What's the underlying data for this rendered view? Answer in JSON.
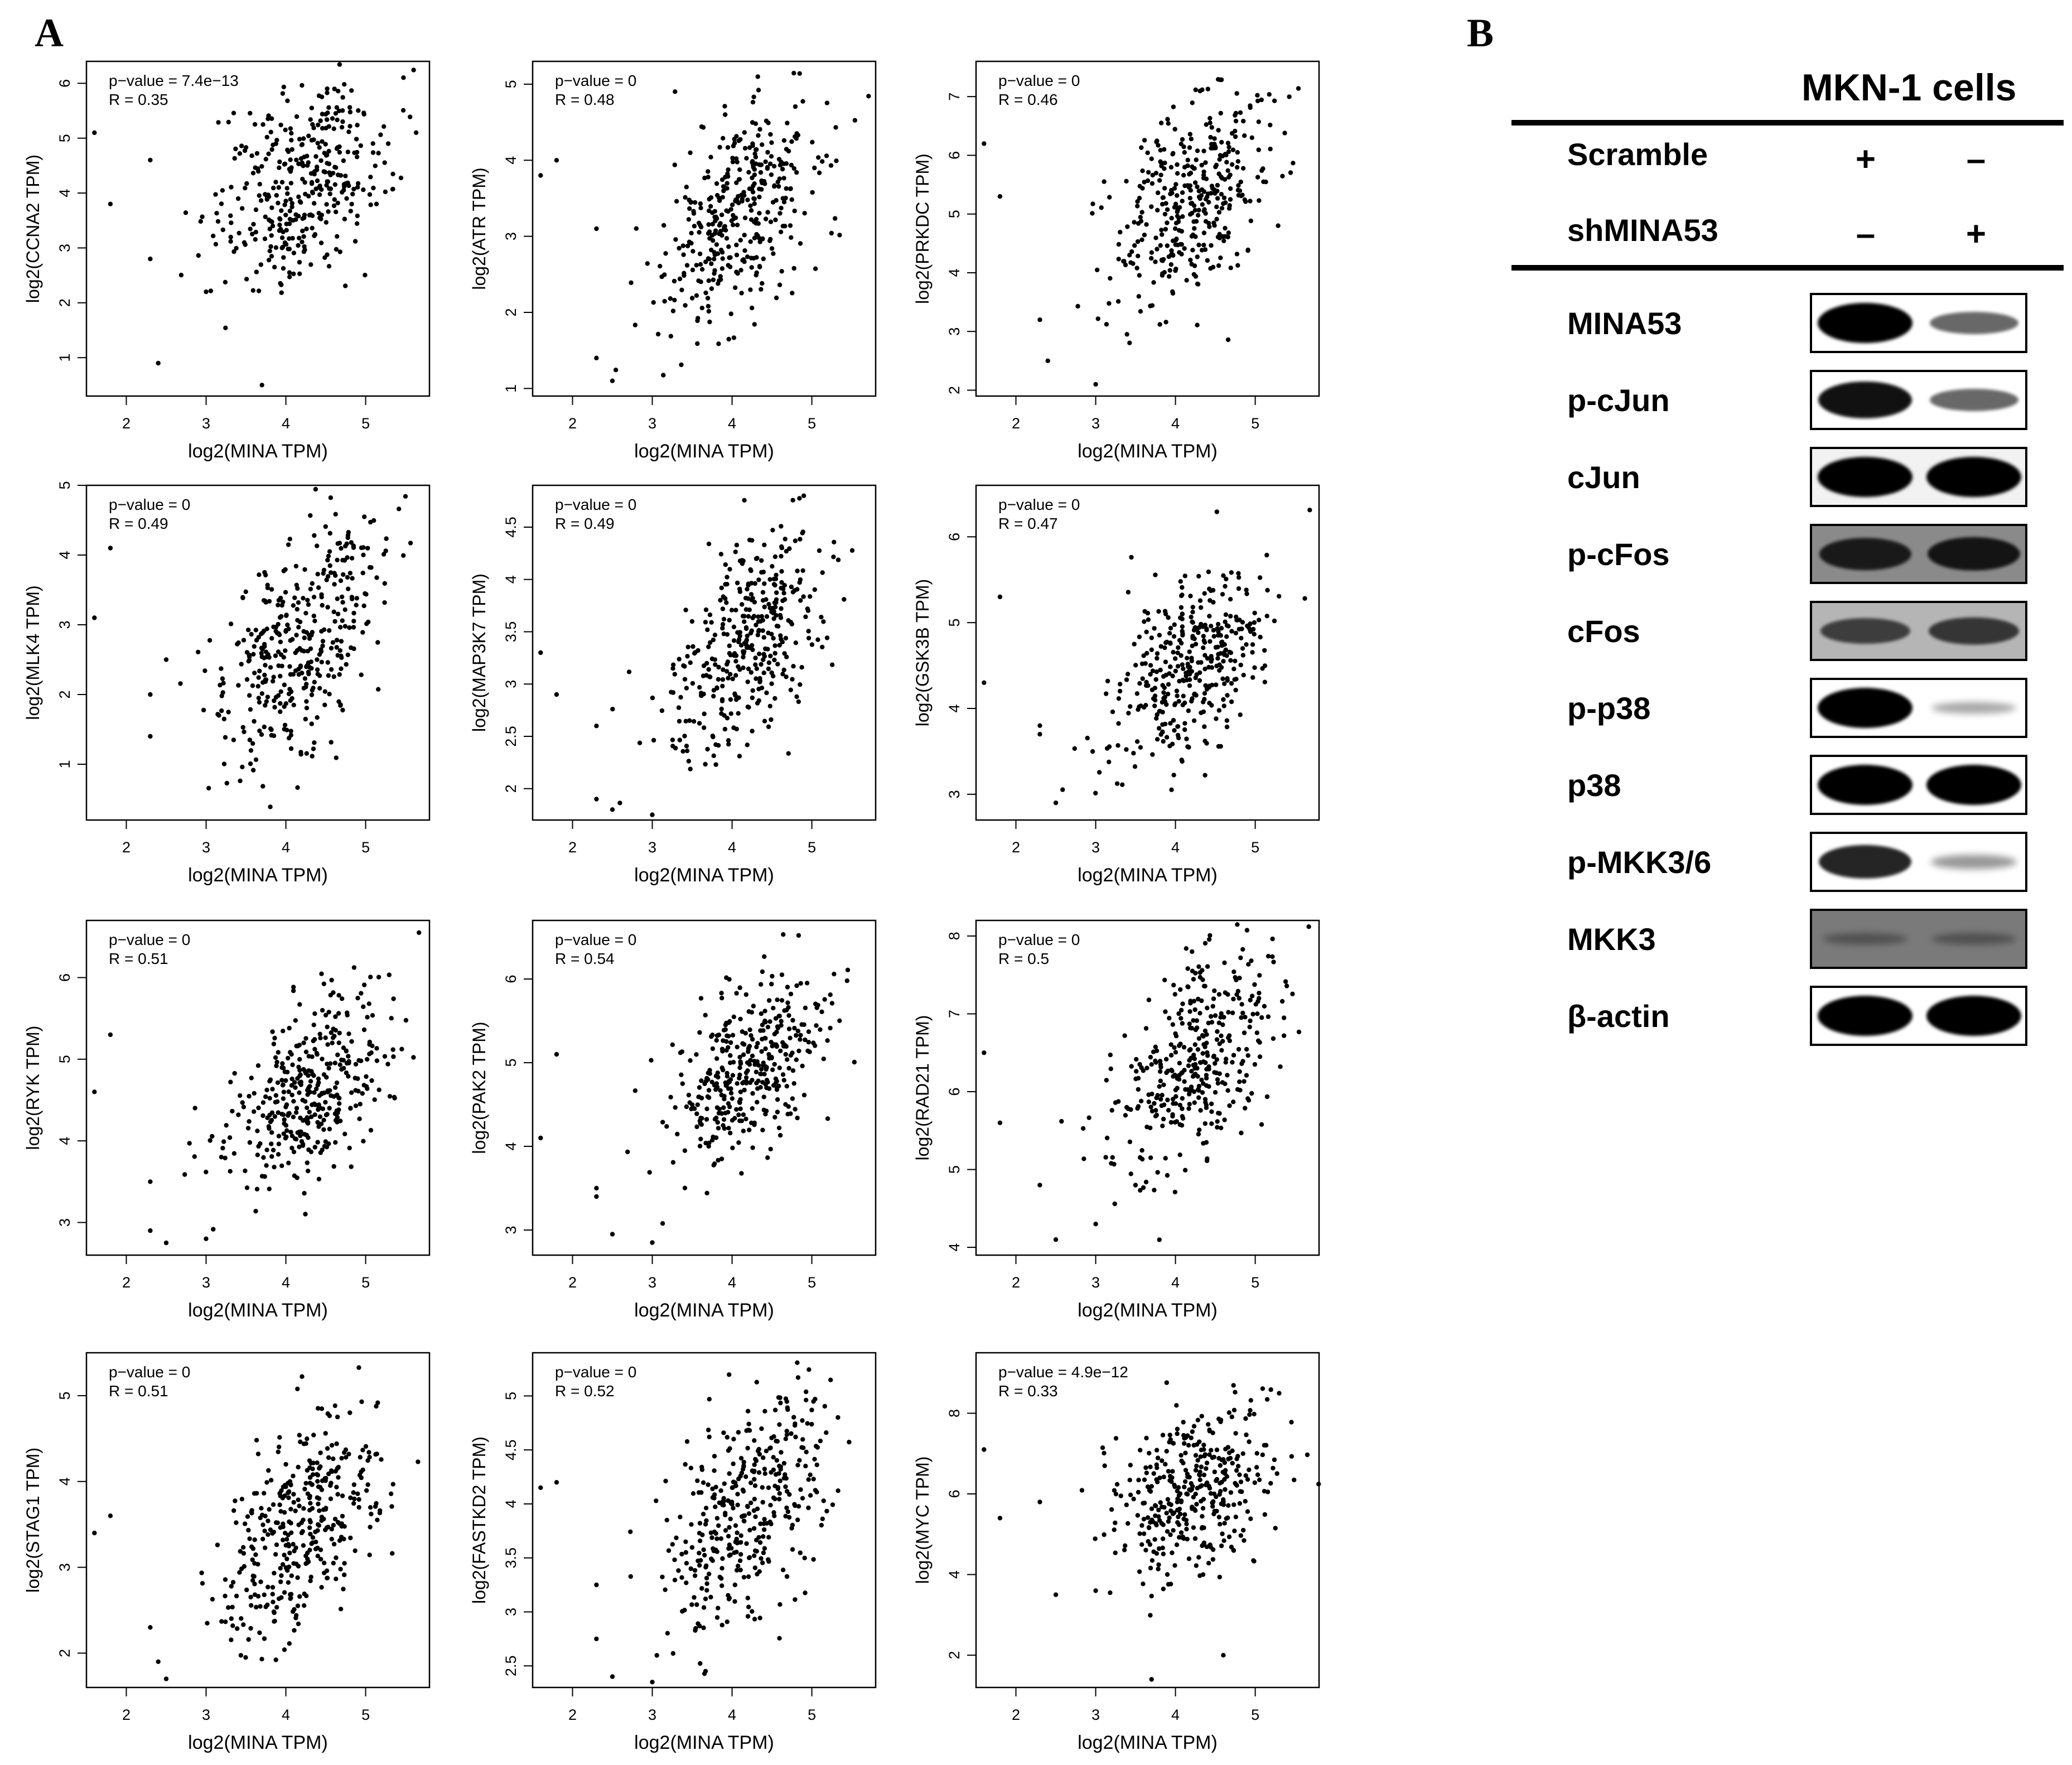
{
  "panel_a_label": "A",
  "panel_b_label": "B",
  "chart_data": [
    {
      "type": "scatter",
      "gene": "CCNA2",
      "ylabel": "log2(CCNA2 TPM)",
      "xlabel": "log2(MINA TPM)",
      "pvalue_text": "p−value = 7.4e−13",
      "r_text": "R = 0.35",
      "r": 0.35,
      "xlim": [
        1.5,
        5.8
      ],
      "ylim": [
        0.3,
        6.4
      ],
      "xticks": [
        2,
        3,
        4,
        5
      ],
      "yticks": [
        1,
        2,
        3,
        4,
        5,
        6
      ],
      "cx": 4.2,
      "cy": 4.2,
      "sx": 0.55,
      "sy": 0.95,
      "outliers": [
        [
          1.6,
          5.1
        ],
        [
          1.8,
          3.8
        ],
        [
          2.3,
          2.8
        ],
        [
          2.4,
          0.9
        ],
        [
          2.3,
          4.6
        ],
        [
          3.7,
          0.5
        ],
        [
          3.0,
          2.2
        ]
      ]
    },
    {
      "type": "scatter",
      "gene": "ATR",
      "ylabel": "log2(ATR TPM)",
      "xlabel": "log2(MINA TPM)",
      "pvalue_text": "p−value = 0",
      "r_text": "R = 0.48",
      "r": 0.48,
      "xlim": [
        1.5,
        5.8
      ],
      "ylim": [
        0.9,
        5.3
      ],
      "xticks": [
        2,
        3,
        4,
        5
      ],
      "yticks": [
        1,
        2,
        3,
        4,
        5
      ],
      "cx": 4.1,
      "cy": 3.3,
      "sx": 0.5,
      "sy": 0.75,
      "outliers": [
        [
          1.6,
          3.8
        ],
        [
          1.8,
          4.0
        ],
        [
          2.3,
          1.4
        ],
        [
          2.5,
          1.1
        ],
        [
          2.3,
          3.1
        ]
      ]
    },
    {
      "type": "scatter",
      "gene": "PRKDC",
      "ylabel": "log2(PRKDC TPM)",
      "xlabel": "log2(MINA TPM)",
      "pvalue_text": "p−value = 0",
      "r_text": "R = 0.46",
      "r": 0.46,
      "xlim": [
        1.5,
        5.8
      ],
      "ylim": [
        1.9,
        7.6
      ],
      "xticks": [
        2,
        3,
        4,
        5
      ],
      "yticks": [
        2,
        3,
        4,
        5,
        6,
        7
      ],
      "cx": 4.2,
      "cy": 5.3,
      "sx": 0.5,
      "sy": 0.95,
      "outliers": [
        [
          1.6,
          6.2
        ],
        [
          1.8,
          5.3
        ],
        [
          2.3,
          3.2
        ],
        [
          2.4,
          2.5
        ],
        [
          3.0,
          2.1
        ]
      ]
    },
    {
      "type": "scatter",
      "gene": "MLK4",
      "ylabel": "log2(MLK4 TPM)",
      "xlabel": "log2(MINA TPM)",
      "pvalue_text": "p−value = 0",
      "r_text": "R = 0.49",
      "r": 0.49,
      "xlim": [
        1.5,
        5.8
      ],
      "ylim": [
        0.2,
        5.0
      ],
      "xticks": [
        2,
        3,
        4,
        5
      ],
      "yticks": [
        1,
        2,
        3,
        4,
        5
      ],
      "cx": 4.2,
      "cy": 2.8,
      "sx": 0.52,
      "sy": 0.9,
      "outliers": [
        [
          1.6,
          3.1
        ],
        [
          1.8,
          4.1
        ],
        [
          2.3,
          2.0
        ],
        [
          2.3,
          1.4
        ],
        [
          2.5,
          2.5
        ]
      ]
    },
    {
      "type": "scatter",
      "gene": "MAP3K7",
      "ylabel": "log2(MAP3K7 TPM)",
      "xlabel": "log2(MINA TPM)",
      "pvalue_text": "p−value = 0",
      "r_text": "R = 0.49",
      "r": 0.49,
      "xlim": [
        1.5,
        5.8
      ],
      "ylim": [
        1.7,
        4.9
      ],
      "xticks": [
        2,
        3,
        4,
        5
      ],
      "yticks": [
        2.0,
        2.5,
        3.0,
        3.5,
        4.0,
        4.5
      ],
      "cx": 4.2,
      "cy": 3.4,
      "sx": 0.5,
      "sy": 0.55,
      "outliers": [
        [
          1.6,
          3.3
        ],
        [
          1.8,
          2.9
        ],
        [
          2.3,
          1.9
        ],
        [
          2.5,
          1.8
        ],
        [
          3.0,
          1.75
        ],
        [
          2.3,
          2.6
        ]
      ]
    },
    {
      "type": "scatter",
      "gene": "GSK3B",
      "ylabel": "log2(GSK3B TPM)",
      "xlabel": "log2(MINA TPM)",
      "pvalue_text": "p−value = 0",
      "r_text": "R = 0.47",
      "r": 0.47,
      "xlim": [
        1.5,
        5.8
      ],
      "ylim": [
        2.7,
        6.6
      ],
      "xticks": [
        2,
        3,
        4,
        5
      ],
      "yticks": [
        3,
        4,
        5,
        6
      ],
      "cx": 4.2,
      "cy": 4.5,
      "sx": 0.5,
      "sy": 0.55,
      "outliers": [
        [
          1.6,
          4.3
        ],
        [
          1.8,
          5.3
        ],
        [
          2.3,
          3.7
        ],
        [
          2.3,
          3.8
        ],
        [
          2.5,
          2.9
        ]
      ]
    },
    {
      "type": "scatter",
      "gene": "RYK",
      "ylabel": "log2(RYK TPM)",
      "xlabel": "log2(MINA TPM)",
      "pvalue_text": "p−value = 0",
      "r_text": "R = 0.51",
      "r": 0.51,
      "xlim": [
        1.5,
        5.8
      ],
      "ylim": [
        2.6,
        6.7
      ],
      "xticks": [
        2,
        3,
        4,
        5
      ],
      "yticks": [
        3,
        4,
        5,
        6
      ],
      "cx": 4.3,
      "cy": 4.6,
      "sx": 0.5,
      "sy": 0.6,
      "outliers": [
        [
          1.6,
          4.6
        ],
        [
          1.8,
          5.3
        ],
        [
          2.3,
          3.5
        ],
        [
          2.3,
          2.9
        ],
        [
          2.5,
          2.75
        ],
        [
          3.0,
          2.8
        ]
      ]
    },
    {
      "type": "scatter",
      "gene": "PAK2",
      "ylabel": "log2(PAK2 TPM)",
      "xlabel": "log2(MINA TPM)",
      "pvalue_text": "p−value = 0",
      "r_text": "R = 0.54",
      "r": 0.54,
      "xlim": [
        1.5,
        5.8
      ],
      "ylim": [
        2.7,
        6.7
      ],
      "xticks": [
        2,
        3,
        4,
        5
      ],
      "yticks": [
        3,
        4,
        5,
        6
      ],
      "cx": 4.2,
      "cy": 4.9,
      "sx": 0.5,
      "sy": 0.55,
      "outliers": [
        [
          1.6,
          4.1
        ],
        [
          1.8,
          5.1
        ],
        [
          2.3,
          3.5
        ],
        [
          2.3,
          3.4
        ],
        [
          2.5,
          2.95
        ],
        [
          3.0,
          2.85
        ]
      ]
    },
    {
      "type": "scatter",
      "gene": "RAD21",
      "ylabel": "log2(RAD21 TPM)",
      "xlabel": "log2(MINA TPM)",
      "pvalue_text": "p−value = 0",
      "r_text": "R = 0.5",
      "r": 0.5,
      "xlim": [
        1.5,
        5.8
      ],
      "ylim": [
        3.9,
        8.2
      ],
      "xticks": [
        2,
        3,
        4,
        5
      ],
      "yticks": [
        4,
        5,
        6,
        7,
        8
      ],
      "cx": 4.3,
      "cy": 6.4,
      "sx": 0.5,
      "sy": 0.75,
      "outliers": [
        [
          1.6,
          6.5
        ],
        [
          1.8,
          5.6
        ],
        [
          2.3,
          4.8
        ],
        [
          2.5,
          4.1
        ],
        [
          3.0,
          4.3
        ]
      ]
    },
    {
      "type": "scatter",
      "gene": "STAG1",
      "ylabel": "log2(STAG1 TPM)",
      "xlabel": "log2(MINA TPM)",
      "pvalue_text": "p−value = 0",
      "r_text": "R = 0.51",
      "r": 0.51,
      "xlim": [
        1.5,
        5.8
      ],
      "ylim": [
        1.6,
        5.5
      ],
      "xticks": [
        2,
        3,
        4,
        5
      ],
      "yticks": [
        2,
        3,
        4,
        5
      ],
      "cx": 4.2,
      "cy": 3.5,
      "sx": 0.5,
      "sy": 0.65,
      "outliers": [
        [
          1.6,
          3.4
        ],
        [
          1.8,
          3.6
        ],
        [
          2.3,
          2.3
        ],
        [
          2.4,
          1.9
        ],
        [
          2.5,
          1.7
        ]
      ]
    },
    {
      "type": "scatter",
      "gene": "FASTKD2",
      "ylabel": "log2(FASTKD2 TPM)",
      "xlabel": "log2(MINA TPM)",
      "pvalue_text": "p−value = 0",
      "r_text": "R = 0.52",
      "r": 0.52,
      "xlim": [
        1.5,
        5.8
      ],
      "ylim": [
        2.3,
        5.4
      ],
      "xticks": [
        2,
        3,
        4,
        5
      ],
      "yticks": [
        2.5,
        3.0,
        3.5,
        4.0,
        4.5,
        5.0
      ],
      "cx": 4.2,
      "cy": 3.95,
      "sx": 0.5,
      "sy": 0.55,
      "outliers": [
        [
          1.6,
          4.15
        ],
        [
          1.8,
          4.2
        ],
        [
          2.3,
          3.25
        ],
        [
          2.3,
          2.75
        ],
        [
          2.5,
          2.4
        ],
        [
          3.0,
          2.35
        ]
      ]
    },
    {
      "type": "scatter",
      "gene": "MYC",
      "ylabel": "log2(MYC TPM)",
      "xlabel": "log2(MINA TPM)",
      "pvalue_text": "p−value = 4.9e−12",
      "r_text": "R = 0.33",
      "r": 0.33,
      "xlim": [
        1.5,
        5.8
      ],
      "ylim": [
        1.2,
        9.5
      ],
      "xticks": [
        2,
        3,
        4,
        5
      ],
      "yticks": [
        2,
        4,
        6,
        8
      ],
      "cx": 4.2,
      "cy": 6.0,
      "sx": 0.5,
      "sy": 1.1,
      "outliers": [
        [
          1.6,
          7.1
        ],
        [
          1.8,
          5.4
        ],
        [
          2.3,
          5.8
        ],
        [
          2.5,
          3.5
        ],
        [
          3.0,
          3.6
        ],
        [
          3.7,
          1.4
        ],
        [
          4.6,
          2.0
        ]
      ]
    }
  ],
  "western_blot": {
    "title": "MKN-1 cells",
    "conditions": [
      {
        "label": "Scramble",
        "signs": [
          "+",
          "–"
        ]
      },
      {
        "label": "shMINA53",
        "signs": [
          "–",
          "+"
        ]
      }
    ],
    "rows": [
      {
        "label": "MINA53",
        "intensity": [
          1.0,
          0.45
        ],
        "background": "#ffffff"
      },
      {
        "label": "p-cJun",
        "intensity": [
          0.9,
          0.45
        ],
        "background": "#ffffff"
      },
      {
        "label": "cJun",
        "intensity": [
          1.0,
          1.0
        ],
        "background": "#f2f2f2"
      },
      {
        "label": "p-cFos",
        "intensity": [
          0.75,
          0.8
        ],
        "background": "#8a8a8a"
      },
      {
        "label": "cFos",
        "intensity": [
          0.55,
          0.6
        ],
        "background": "#b5b5b5"
      },
      {
        "label": "p-p38",
        "intensity": [
          1.0,
          0.12
        ],
        "background": "#ffffff"
      },
      {
        "label": "p38",
        "intensity": [
          1.0,
          1.0
        ],
        "background": "#ffffff"
      },
      {
        "label": "p-MKK3/6",
        "intensity": [
          0.8,
          0.2
        ],
        "background": "#ffffff"
      },
      {
        "label": "MKK3",
        "intensity": [
          0.12,
          0.12
        ],
        "background": "#7a7a7a"
      },
      {
        "label": "β-actin",
        "intensity": [
          1.0,
          1.0
        ],
        "background": "#ffffff"
      }
    ]
  }
}
